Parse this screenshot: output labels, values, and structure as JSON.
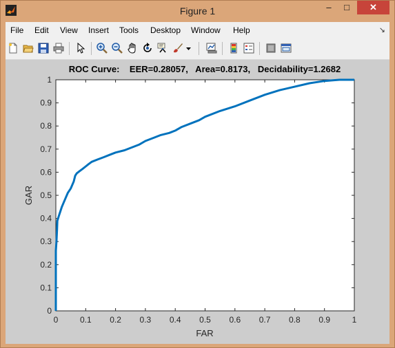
{
  "window": {
    "title": "Figure 1",
    "min_glyph": "–",
    "max_glyph": "□",
    "close_glyph": "✕"
  },
  "menu": {
    "items": [
      "File",
      "Edit",
      "View",
      "Insert",
      "Tools",
      "Desktop",
      "Window",
      "Help"
    ],
    "dock_glyph": "↘"
  },
  "toolbar": {
    "icons": [
      "new-figure-icon",
      "open-file-icon",
      "save-icon",
      "print-icon",
      "edit-plot-icon",
      "zoom-in-icon",
      "zoom-out-icon",
      "pan-icon",
      "rotate-3d-icon",
      "data-cursor-icon",
      "brush-icon",
      "brush-dropdown-icon",
      "link-plot-icon",
      "insert-colorbar-icon",
      "insert-legend-icon",
      "hide-plot-tools-icon",
      "show-plot-tools-icon"
    ]
  },
  "colors": {
    "line": "#0072bd",
    "axes_bg": "#ffffff",
    "figure_bg": "#cdcdcd"
  },
  "chart_data": {
    "type": "line",
    "title": "ROC Curve:    EER=0.28057,   Area=0.8173,   Decidability=1.2682",
    "xlabel": "FAR",
    "ylabel": "GAR",
    "xlim": [
      0,
      1
    ],
    "ylim": [
      0,
      1
    ],
    "xticks": [
      "0",
      "0.1",
      "0.2",
      "0.3",
      "0.4",
      "0.5",
      "0.6",
      "0.7",
      "0.8",
      "0.9",
      "1"
    ],
    "yticks": [
      "0",
      "0.1",
      "0.2",
      "0.3",
      "0.4",
      "0.5",
      "0.6",
      "0.7",
      "0.8",
      "0.9",
      "1"
    ],
    "grid": false,
    "series": [
      {
        "x": [
          0,
          0,
          0.002,
          0.004,
          0.005,
          0.01,
          0.015,
          0.02,
          0.03,
          0.04,
          0.05,
          0.06,
          0.065,
          0.07,
          0.08,
          0.09,
          0.1,
          0.11,
          0.12,
          0.14,
          0.16,
          0.18,
          0.2,
          0.23,
          0.25,
          0.28,
          0.3,
          0.33,
          0.35,
          0.38,
          0.4,
          0.42,
          0.45,
          0.48,
          0.5,
          0.55,
          0.6,
          0.65,
          0.7,
          0.75,
          0.8,
          0.85,
          0.9,
          0.95,
          1
        ],
        "y": [
          0,
          0.26,
          0.3,
          0.35,
          0.39,
          0.41,
          0.43,
          0.45,
          0.48,
          0.51,
          0.53,
          0.56,
          0.585,
          0.595,
          0.605,
          0.615,
          0.625,
          0.635,
          0.645,
          0.655,
          0.665,
          0.675,
          0.685,
          0.695,
          0.705,
          0.72,
          0.735,
          0.75,
          0.76,
          0.77,
          0.78,
          0.795,
          0.81,
          0.825,
          0.84,
          0.865,
          0.885,
          0.91,
          0.935,
          0.955,
          0.97,
          0.985,
          0.995,
          1,
          1
        ]
      }
    ]
  }
}
